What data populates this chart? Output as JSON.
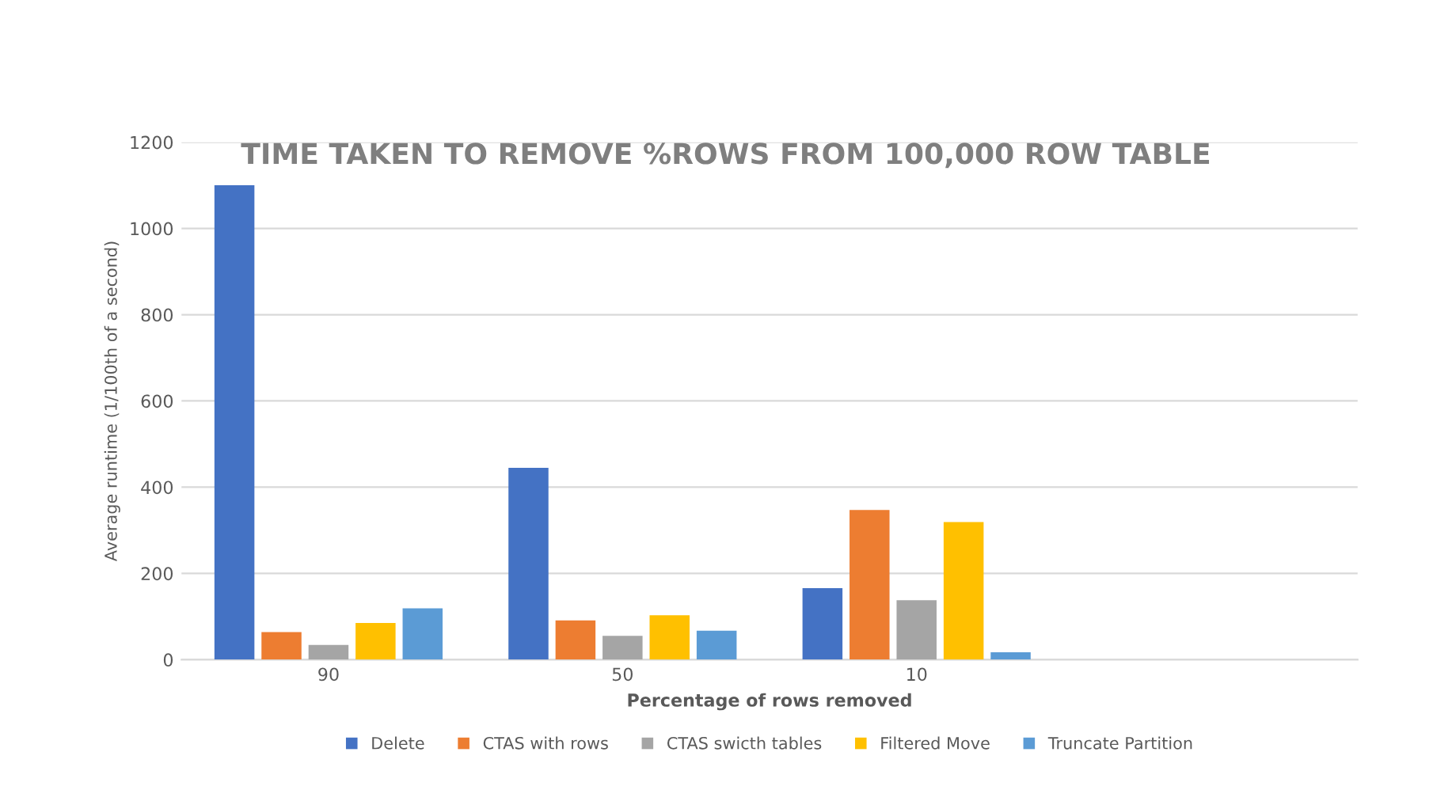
{
  "chart_data": {
    "type": "bar",
    "title": "TIME TAKEN TO REMOVE %ROWS FROM 100,000 ROW TABLE",
    "xlabel": "Percentage of rows removed",
    "ylabel": "Average runtime (1/100th of a second)",
    "categories": [
      "90",
      "50",
      "10",
      null
    ],
    "series": [
      {
        "name": "Delete",
        "color": "#4472c4",
        "values": [
          1100,
          445,
          166,
          null
        ]
      },
      {
        "name": "CTAS with rows",
        "color": "#ed7d31",
        "values": [
          64,
          91,
          347,
          null
        ]
      },
      {
        "name": "CTAS swicth tables",
        "color": "#a5a5a5",
        "values": [
          34,
          55,
          138,
          null
        ]
      },
      {
        "name": "Filtered Move",
        "color": "#ffc000",
        "values": [
          85,
          103,
          319,
          null
        ]
      },
      {
        "name": "Truncate Partition",
        "color": "#5b9bd5",
        "values": [
          119,
          67,
          17,
          null
        ]
      }
    ],
    "ylim": [
      0,
      1200
    ],
    "yticks": [
      0,
      200,
      400,
      600,
      800,
      1000,
      1200
    ],
    "grid": "y",
    "legend": "bottom"
  }
}
